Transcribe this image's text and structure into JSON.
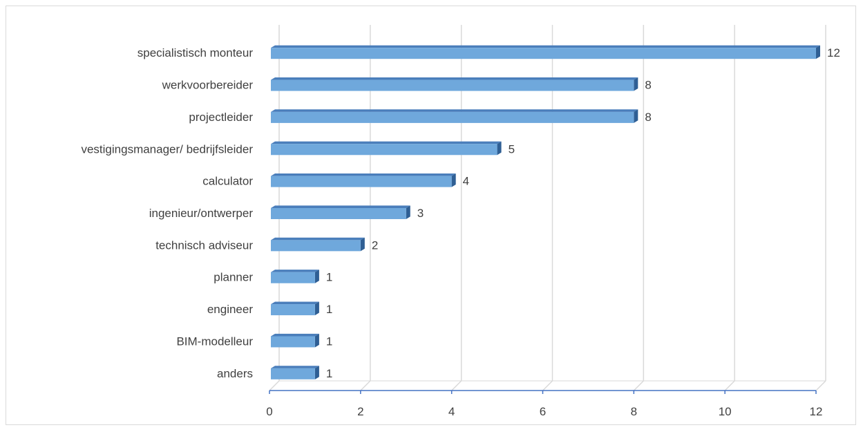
{
  "chart_data": {
    "type": "bar",
    "orientation": "horizontal",
    "style": "3d",
    "title": "",
    "xlabel": "",
    "ylabel": "",
    "categories": [
      "specialistisch monteur",
      "werkvoorbereider",
      "projectleider",
      "vestigingsmanager/ bedrijfsleider",
      "calculator",
      "ingenieur/ontwerper",
      "technisch adviseur",
      "planner",
      "engineer",
      "BIM-modelleur",
      "anders"
    ],
    "values": [
      12,
      8,
      8,
      5,
      4,
      3,
      2,
      1,
      1,
      1,
      1
    ],
    "xlim": [
      0,
      12
    ],
    "xticks": [
      0,
      2,
      4,
      6,
      8,
      10,
      12
    ],
    "grid": true,
    "legend": "none",
    "colors": {
      "bar_front": "#6fa8dc",
      "bar_top": "#4a7ebb",
      "bar_side": "#2f5f94",
      "grid": "#d9d9d9",
      "axis": "#4472c4",
      "text": "#404040"
    }
  }
}
